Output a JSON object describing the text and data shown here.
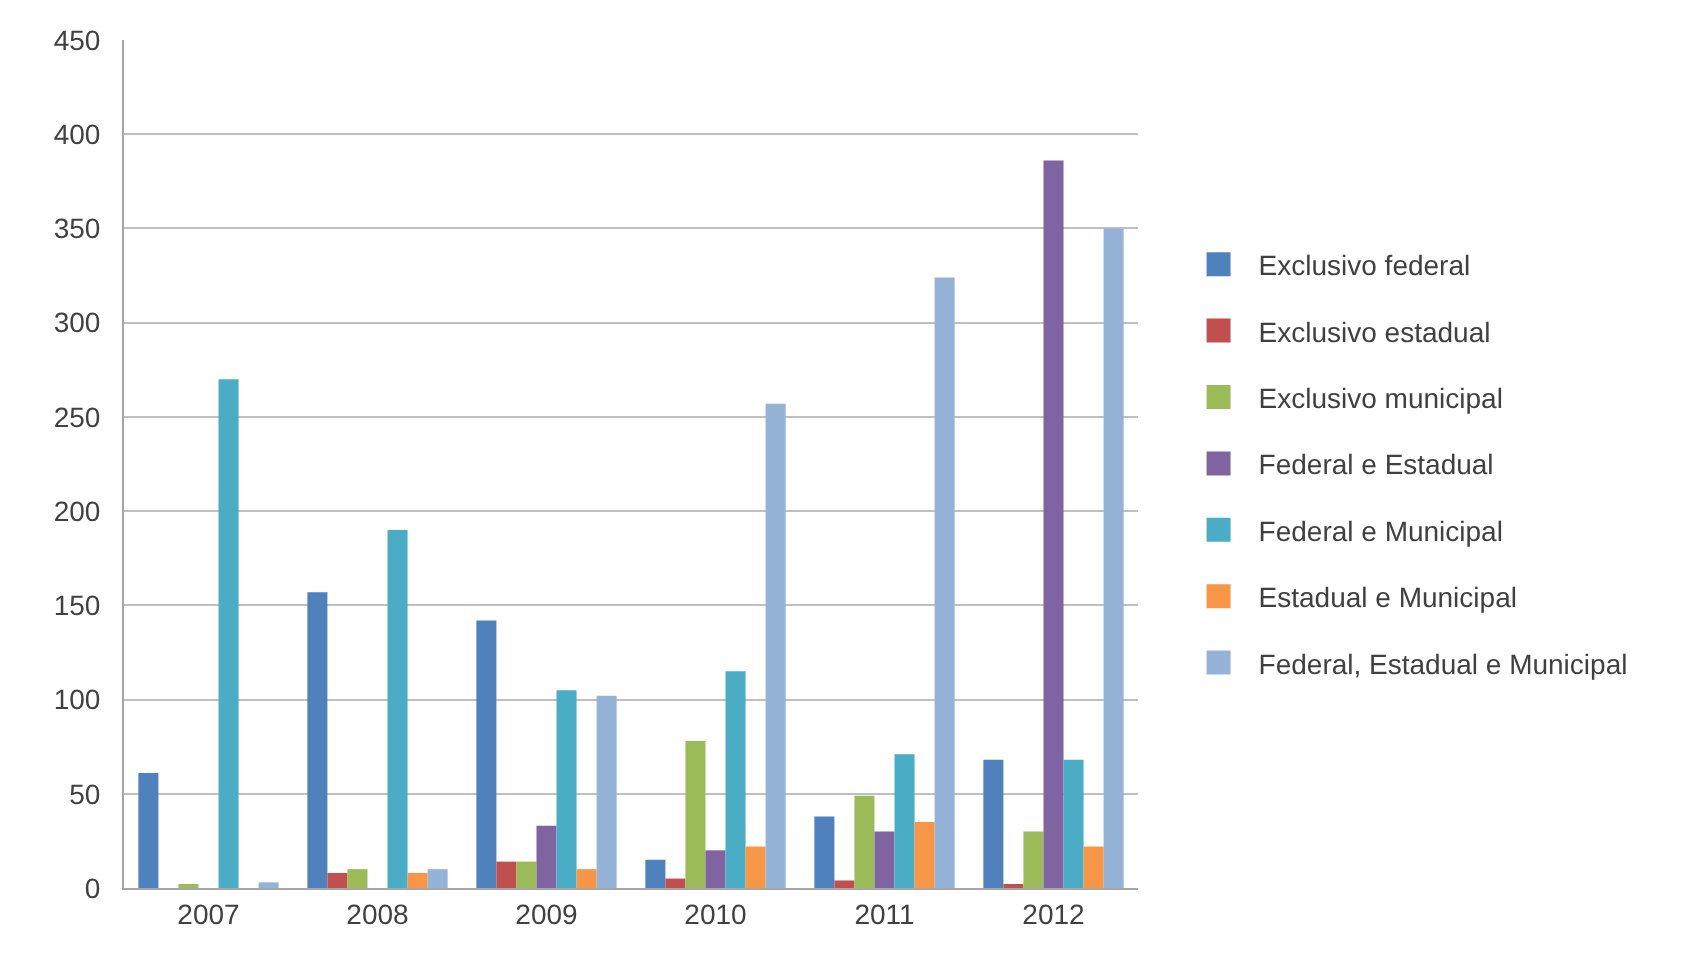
{
  "chart_data": {
    "type": "bar",
    "categories": [
      "2007",
      "2008",
      "2009",
      "2010",
      "2011",
      "2012"
    ],
    "series": [
      {
        "name": "Exclusivo federal",
        "color": "#4f81bd",
        "values": [
          61,
          157,
          142,
          15,
          38,
          68
        ]
      },
      {
        "name": "Exclusivo estadual",
        "color": "#c0504d",
        "values": [
          0,
          8,
          14,
          5,
          4,
          2
        ]
      },
      {
        "name": "Exclusivo municipal",
        "color": "#9bbb59",
        "values": [
          2,
          10,
          14,
          78,
          49,
          30
        ]
      },
      {
        "name": "Federal e Estadual",
        "color": "#8064a2",
        "values": [
          0,
          0,
          33,
          20,
          30,
          386
        ]
      },
      {
        "name": "Federal e Municipal",
        "color": "#4bacc6",
        "values": [
          270,
          190,
          105,
          115,
          71,
          68
        ]
      },
      {
        "name": "Estadual e Municipal",
        "color": "#f79646",
        "values": [
          0,
          8,
          10,
          22,
          35,
          22
        ]
      },
      {
        "name": "Federal, Estadual e Municipal",
        "color": "#95b3d7",
        "values": [
          3,
          10,
          102,
          257,
          324,
          350
        ]
      }
    ],
    "ylim": [
      0,
      450
    ],
    "yticks": [
      0,
      50,
      100,
      150,
      200,
      250,
      300,
      350,
      400,
      450
    ],
    "grid": "y",
    "legend": "right"
  }
}
